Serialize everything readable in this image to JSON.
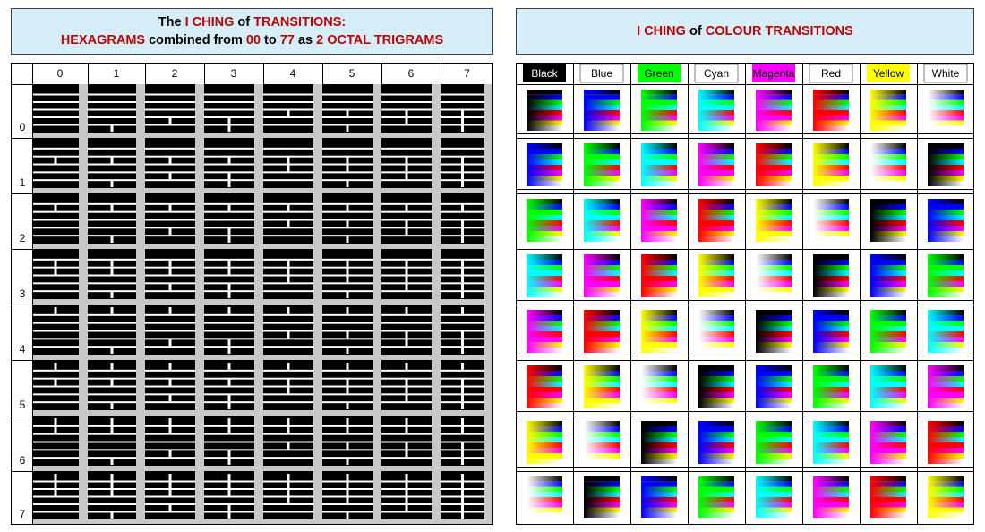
{
  "left_title": {
    "line1": [
      {
        "text": "The ",
        "red": false
      },
      {
        "text": "I CHING",
        "red": true
      },
      {
        "text": " of ",
        "red": false
      },
      {
        "text": "TRANSITIONS:",
        "red": true
      }
    ],
    "line2": [
      {
        "text": "HEXAGRAMS",
        "red": true
      },
      {
        "text": " combined from ",
        "red": false
      },
      {
        "text": "00",
        "red": true
      },
      {
        "text": " to ",
        "red": false
      },
      {
        "text": "77",
        "red": true
      },
      {
        "text": " as ",
        "red": false
      },
      {
        "text": "2 OCTAL TRIGRAMS",
        "red": true
      }
    ]
  },
  "right_title": [
    {
      "text": "I CHING",
      "red": true
    },
    {
      "text": " of ",
      "red": false
    },
    {
      "text": "COLOUR TRANSITIONS",
      "red": true
    }
  ],
  "hexagram_grid": {
    "column_labels": [
      "0",
      "1",
      "2",
      "3",
      "4",
      "5",
      "6",
      "7"
    ],
    "row_labels": [
      "0",
      "1",
      "2",
      "3",
      "4",
      "5",
      "6",
      "7"
    ],
    "line_color": "#000000",
    "gap_color": "#ffffff",
    "separator_color": "#c8c8c8"
  },
  "colour_grid": {
    "colors": [
      {
        "name": "Black",
        "hex": "#000000",
        "text": "#ffffff"
      },
      {
        "name": "Blue",
        "hex": "#0000ff",
        "text": "#000000"
      },
      {
        "name": "Green",
        "hex": "#00ff00",
        "text": "#000000"
      },
      {
        "name": "Cyan",
        "hex": "#00ffff",
        "text": "#000000"
      },
      {
        "name": "Magenta",
        "hex": "#ff00ff",
        "text": "#000000"
      },
      {
        "name": "Red",
        "hex": "#ff0000",
        "text": "#000000"
      },
      {
        "name": "Yellow",
        "hex": "#ffff00",
        "text": "#000000"
      },
      {
        "name": "White",
        "hex": "#ffffff",
        "text": "#000000"
      }
    ],
    "header_highlight": [
      true,
      false,
      true,
      false,
      true,
      false,
      true,
      false
    ],
    "stripe_colors": [
      "Blue",
      "Green",
      "Cyan",
      "Red",
      "Magenta",
      "Yellow"
    ]
  }
}
